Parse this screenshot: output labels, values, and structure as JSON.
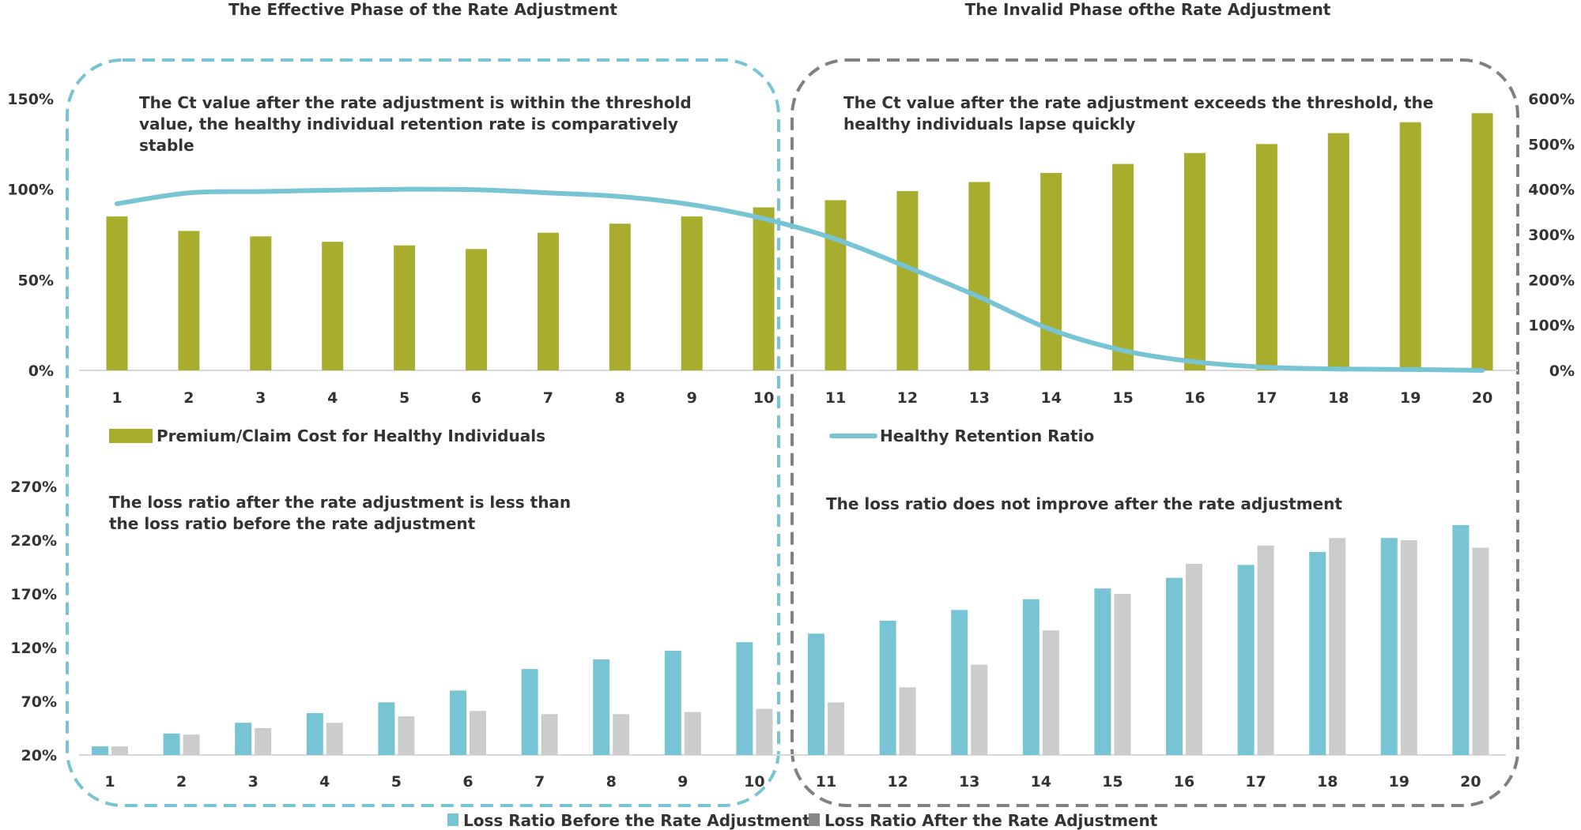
{
  "titles": {
    "left": "The Effective Phase of the Rate Adjustment",
    "right": "The Invalid Phase ofthe Rate Adjustment"
  },
  "annotations": {
    "top_left_1": "The Ct value after the rate adjustment is within the threshold",
    "top_left_2": "value, the healthy individual retention rate is comparatively",
    "top_left_3": "stable",
    "top_right_1": "The Ct value after the rate adjustment exceeds the threshold, the",
    "top_right_2": "healthy individuals lapse quickly",
    "bottom_left_1": "The loss ratio after the rate adjustment is less than",
    "bottom_left_2": "the loss ratio before the rate adjustment",
    "bottom_right_1": "The loss ratio does not improve after the rate adjustment"
  },
  "colors": {
    "olive": "#a8ad2e",
    "blue": "#76c4d4",
    "grey": "#cccccc",
    "grey_legend": "#888888",
    "box_left": "#76c4d4",
    "box_right": "#808080"
  },
  "chart_data": [
    {
      "type": "bar+line",
      "categories": [
        "1",
        "2",
        "3",
        "4",
        "5",
        "6",
        "7",
        "8",
        "9",
        "10",
        "11",
        "12",
        "13",
        "14",
        "15",
        "16",
        "17",
        "18",
        "19",
        "20"
      ],
      "series": [
        {
          "name": "Premium/Claim Cost for Healthy Individuals",
          "type": "bar",
          "axis": "left",
          "values": [
            85,
            77,
            74,
            71,
            69,
            67,
            76,
            81,
            85,
            90,
            94,
            99,
            104,
            109,
            114,
            120,
            125,
            131,
            137,
            142
          ]
        },
        {
          "name": "Healthy Retention Ratio",
          "type": "line",
          "axis": "right",
          "values": [
            368,
            392,
            395,
            398,
            400,
            399,
            392,
            384,
            366,
            335,
            290,
            228,
            162,
            90,
            44,
            19,
            7,
            3,
            2,
            0
          ]
        }
      ],
      "y_left": {
        "ticks": [
          "0%",
          "50%",
          "100%",
          "150%"
        ],
        "range": [
          0,
          150
        ]
      },
      "y_right": {
        "ticks": [
          "0%",
          "100%",
          "200%",
          "300%",
          "400%",
          "500%",
          "600%"
        ],
        "range": [
          0,
          600
        ]
      },
      "legend": "bottom"
    },
    {
      "type": "bar",
      "categories": [
        "1",
        "2",
        "3",
        "4",
        "5",
        "6",
        "7",
        "8",
        "9",
        "10",
        "11",
        "12",
        "13",
        "14",
        "15",
        "16",
        "17",
        "18",
        "19",
        "20"
      ],
      "series": [
        {
          "name": "Loss Ratio Before the Rate Adjustment",
          "values": [
            28,
            40,
            50,
            59,
            69,
            80,
            100,
            109,
            117,
            125,
            133,
            145,
            155,
            165,
            175,
            185,
            197,
            209,
            222,
            234
          ]
        },
        {
          "name": "Loss Ratio After the Rate Adjustment",
          "values": [
            28,
            39,
            45,
            50,
            56,
            61,
            58,
            58,
            60,
            63,
            69,
            83,
            104,
            136,
            170,
            198,
            215,
            222,
            220,
            213
          ]
        }
      ],
      "y": {
        "ticks": [
          "20%",
          "70%",
          "120%",
          "170%",
          "220%",
          "270%"
        ],
        "range": [
          20,
          270
        ]
      },
      "legend": "bottom"
    }
  ]
}
